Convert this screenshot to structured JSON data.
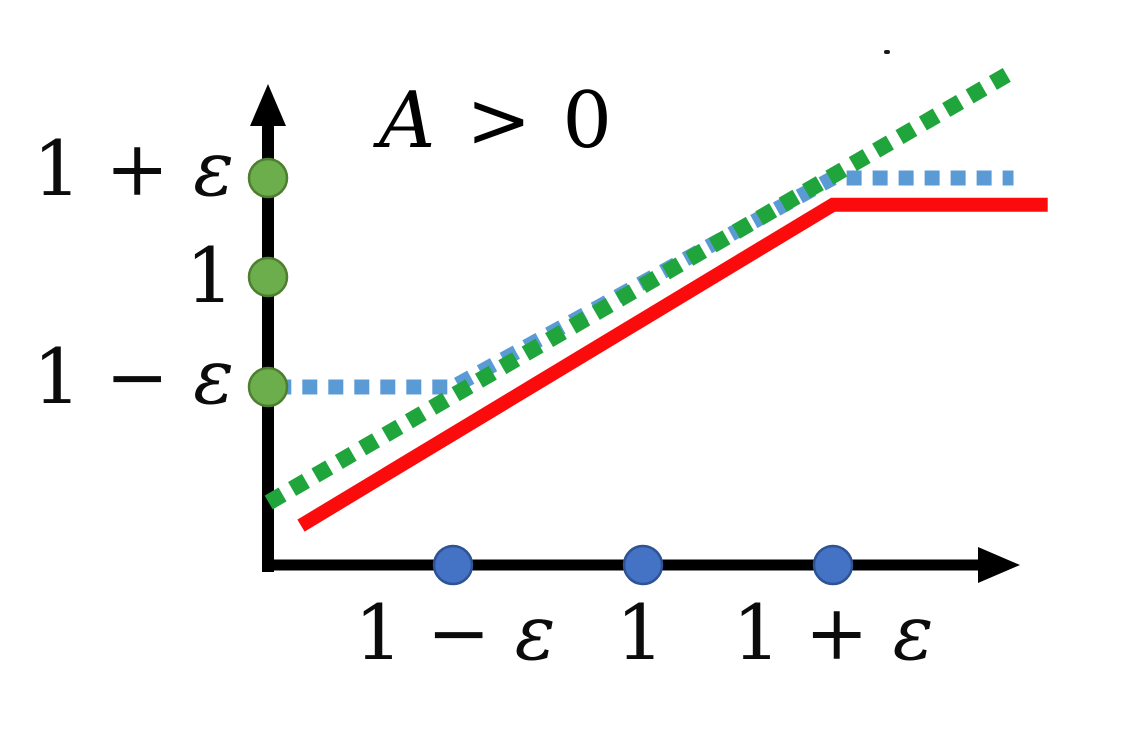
{
  "chart_data": {
    "type": "line",
    "title": "A > 0",
    "condition": {
      "variable": "A",
      "relation": " > 0"
    },
    "x_axis": {
      "ticks": [
        {
          "prefix": "1 − ",
          "symbol": "ε",
          "u": -1
        },
        {
          "prefix": "1",
          "symbol": "",
          "u": 0
        },
        {
          "prefix": "1 + ",
          "symbol": "ε",
          "u": 1
        }
      ],
      "marker_fill": "#4472C4",
      "marker_stroke": "#2E5395"
    },
    "y_axis": {
      "ticks": [
        {
          "prefix": "1 + ",
          "symbol": "ε",
          "v": 1
        },
        {
          "prefix": "1",
          "symbol": "",
          "v": 0
        },
        {
          "prefix": "1 − ",
          "symbol": "ε",
          "v": -1
        }
      ],
      "marker_fill": "#6CAE4C",
      "marker_stroke": "#4E7E2F"
    },
    "axis_color": "#000000",
    "grid": false,
    "legend": false,
    "series": [
      {
        "name": "blue-dotted-clamped",
        "color": "#5B9BD5",
        "style": "dotted",
        "stroke_width": 15,
        "dash": "15 11",
        "points": [
          [
            -1.93,
            -1
          ],
          [
            -1,
            -1
          ],
          [
            1,
            1
          ],
          [
            1.95,
            1
          ]
        ]
      },
      {
        "name": "green-dotted-linear",
        "color": "#1FA53C",
        "style": "dotted",
        "stroke_width": 16,
        "dash": "16 11",
        "points": [
          [
            -1.97,
            -2.05
          ],
          [
            1.94,
            2.07
          ]
        ]
      },
      {
        "name": "red-solid-capped",
        "color": "#FB0B0B",
        "style": "solid",
        "stroke_width": 14,
        "dash": "",
        "points": [
          [
            -1.8,
            -2.26
          ],
          [
            1,
            0.73
          ],
          [
            2.13,
            0.73
          ]
        ]
      }
    ]
  }
}
